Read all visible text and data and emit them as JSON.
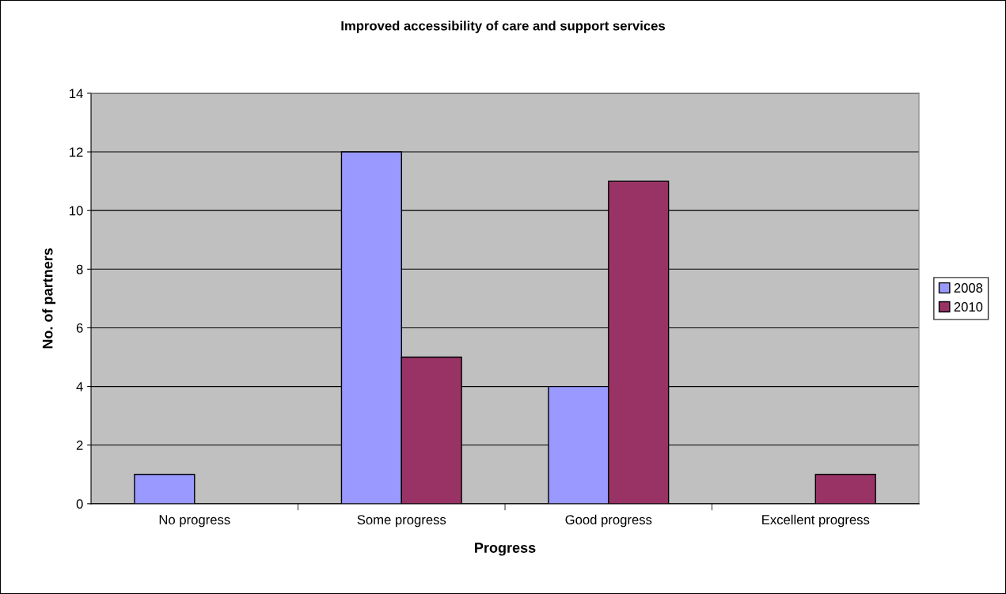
{
  "chart_data": {
    "type": "bar",
    "title": "Improved accessibility of care and support services",
    "xlabel": "Progress",
    "ylabel": "No. of partners",
    "categories": [
      "No progress",
      "Some progress",
      "Good progress",
      "Excellent progress"
    ],
    "series": [
      {
        "name": "2008",
        "color": "#9999ff",
        "values": [
          1,
          12,
          4,
          0
        ]
      },
      {
        "name": "2010",
        "color": "#993366",
        "values": [
          0,
          5,
          11,
          1
        ]
      }
    ],
    "ylim": [
      0,
      14
    ],
    "yticks": [
      0,
      2,
      4,
      6,
      8,
      10,
      12,
      14
    ],
    "grid": "y",
    "legend": "right"
  }
}
